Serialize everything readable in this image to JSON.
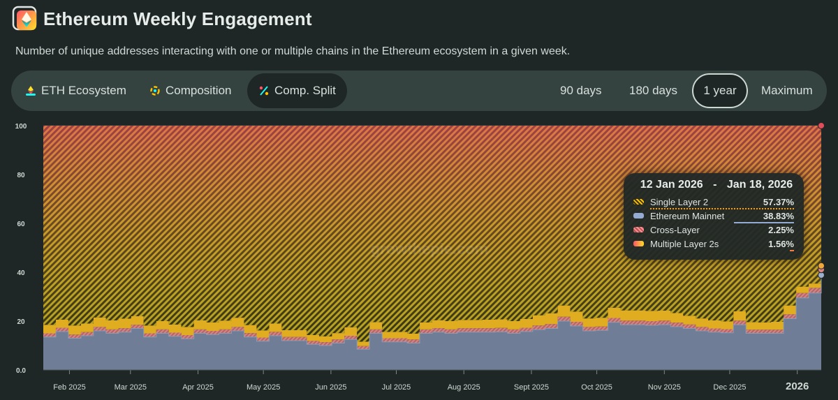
{
  "header": {
    "title": "Ethereum Weekly Engagement",
    "subtitle": "Number of unique addresses interacting with one or multiple chains in the Ethereum ecosystem in a given week."
  },
  "tabs": [
    {
      "label": "ETH Ecosystem",
      "icon": "eth-ecosystem-icon",
      "selected": false
    },
    {
      "label": "Composition",
      "icon": "composition-icon",
      "selected": false
    },
    {
      "label": "Comp. Split",
      "icon": "percent-icon",
      "selected": true
    }
  ],
  "ranges": [
    {
      "label": "90 days",
      "selected": false
    },
    {
      "label": "180 days",
      "selected": false
    },
    {
      "label": "1 year",
      "selected": true
    },
    {
      "label": "Maximum",
      "selected": false
    }
  ],
  "tooltip": {
    "date_start": "12 Jan 2026",
    "separator": "-",
    "date_end": "Jan 18, 2026",
    "rows": [
      {
        "name": "Single Layer 2",
        "value": "57.37%",
        "color": "#ffc300"
      },
      {
        "name": "Ethereum Mainnet",
        "value": "38.83%",
        "color": "#94abd3"
      },
      {
        "name": "Cross-Layer",
        "value": "2.25%",
        "color": "#ff8f8f"
      },
      {
        "name": "Multiple Layer 2s",
        "value": "1.56%",
        "color": "#fe5468"
      }
    ]
  },
  "colors": {
    "background": "#1f2726",
    "panel": "#344240",
    "mainnet": "#6f7e96",
    "cross_layer": "#c37474",
    "multiple_l2": "#e8b122",
    "single_l2_hatch": "#d8c12a"
  },
  "chart_data": {
    "type": "area",
    "stacked": true,
    "percent": true,
    "ylim": [
      0,
      100
    ],
    "yticks": [
      "0.0",
      "20",
      "40",
      "60",
      "80",
      "100"
    ],
    "xticks": [
      "Feb 2025",
      "Mar 2025",
      "Apr 2025",
      "May 2025",
      "Jun 2025",
      "Jul 2025",
      "Aug 2025",
      "Sept 2025",
      "Oct 2025",
      "Nov 2025",
      "Dec 2025",
      "2026"
    ],
    "x_start": "2025-01-20",
    "x_end": "2026-01-12",
    "grid": true,
    "legend": "tooltip",
    "series": [
      {
        "name": "Ethereum Mainnet",
        "values": [
          13.5,
          15.7,
          13,
          14,
          16,
          15,
          15.5,
          17,
          13.5,
          15,
          13.8,
          12.8,
          15,
          14.5,
          15,
          16,
          13.5,
          11.8,
          14,
          12,
          12,
          10.5,
          10,
          11,
          12.5,
          8.5,
          15,
          11.5,
          11.5,
          11,
          15,
          15.5,
          15,
          15.5,
          15.5,
          15.5,
          15.6,
          15,
          15.7,
          16.5,
          17,
          20,
          18,
          16,
          16.2,
          19.5,
          18.5,
          18.5,
          18.3,
          18.5,
          17.7,
          17,
          16,
          15.5,
          15.2,
          18.5,
          15,
          15,
          15,
          21,
          29.5,
          31.5,
          38.83
        ]
      },
      {
        "name": "Cross-Layer",
        "values": [
          1.5,
          1.6,
          1.5,
          1.5,
          1.6,
          1.6,
          1.6,
          1.5,
          1.5,
          1.6,
          1.5,
          1.5,
          1.6,
          1.5,
          1.6,
          1.6,
          1.6,
          1.5,
          1.6,
          1.5,
          1.5,
          1.4,
          1.4,
          1.5,
          1.5,
          1.3,
          1.6,
          1.5,
          1.5,
          1.5,
          1.6,
          1.6,
          1.6,
          1.6,
          1.6,
          1.6,
          1.6,
          1.6,
          1.6,
          1.7,
          1.8,
          1.8,
          1.7,
          1.6,
          1.6,
          1.8,
          1.7,
          1.7,
          1.7,
          1.7,
          1.7,
          1.6,
          1.6,
          1.5,
          1.5,
          1.7,
          1.5,
          1.5,
          1.5,
          1.8,
          2,
          2.1,
          2.25
        ]
      },
      {
        "name": "Multiple Layer 2s",
        "values": [
          3.5,
          3.3,
          3.7,
          3.5,
          3.9,
          3.7,
          3.9,
          3.5,
          3.2,
          3.4,
          3.3,
          3.3,
          3.7,
          3.5,
          3.6,
          3.8,
          3.3,
          2.9,
          3.4,
          2.8,
          2.8,
          2.4,
          2.4,
          2.6,
          3.5,
          1.8,
          3,
          2.6,
          2.6,
          2.4,
          2.9,
          3.3,
          3.4,
          3.4,
          3.4,
          3.5,
          3.5,
          3.4,
          3.6,
          4.2,
          4.4,
          4.6,
          4.2,
          3.5,
          3.6,
          4.2,
          4.2,
          4.2,
          4.2,
          4.1,
          3.9,
          3.6,
          3.5,
          3.3,
          3.2,
          3.8,
          3.1,
          3,
          3.2,
          3.6,
          2.6,
          1.8,
          1.56
        ]
      },
      {
        "name": "Single Layer 2",
        "values": [
          81.5,
          79.4,
          81.8,
          81,
          78.5,
          79.7,
          79,
          78,
          81.8,
          80,
          81.4,
          82.4,
          79.7,
          80.5,
          79.8,
          78.6,
          81.6,
          83.8,
          81,
          83.7,
          83.7,
          85.7,
          86.2,
          84.9,
          82.5,
          88.4,
          80.4,
          84.4,
          84.4,
          85.1,
          80.5,
          79.6,
          80,
          79.5,
          79.5,
          79.4,
          79.3,
          80,
          79.1,
          77.6,
          76.8,
          73.6,
          76.1,
          78.9,
          78.6,
          74.5,
          75.6,
          75.6,
          75.8,
          75.7,
          76.7,
          77.8,
          78.9,
          79.7,
          80.1,
          76,
          80.4,
          80.5,
          80.3,
          73.6,
          65.9,
          64.6,
          57.37
        ]
      }
    ]
  }
}
